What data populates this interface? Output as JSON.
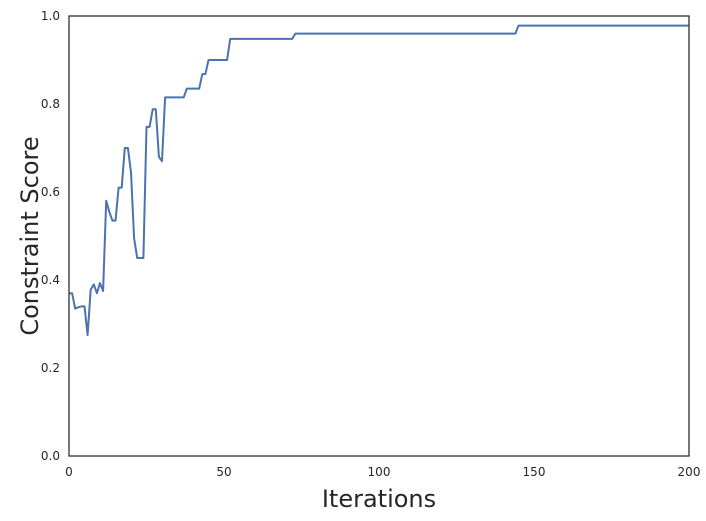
{
  "chart_data": {
    "type": "line",
    "title": "",
    "xlabel": "Iterations",
    "ylabel": "Constraint Score",
    "xlim": [
      0,
      200
    ],
    "ylim": [
      0.0,
      1.0
    ],
    "xticks": [
      0,
      50,
      100,
      150,
      200
    ],
    "yticks": [
      0.0,
      0.2,
      0.4,
      0.6,
      0.8,
      1.0
    ],
    "xtick_labels": [
      "0",
      "50",
      "100",
      "150",
      "200"
    ],
    "ytick_labels": [
      "0.0",
      "0.2",
      "0.4",
      "0.6",
      "0.8",
      "1.0"
    ],
    "grid": false,
    "legend": "none",
    "series": [
      {
        "color": "#4c72b0",
        "x": [
          0,
          1,
          2,
          3,
          4,
          5,
          6,
          7,
          8,
          9,
          10,
          11,
          12,
          13,
          14,
          15,
          16,
          17,
          18,
          19,
          20,
          21,
          22,
          23,
          24,
          25,
          26,
          27,
          28,
          29,
          30,
          31,
          32,
          33,
          34,
          35,
          36,
          37,
          38,
          39,
          40,
          41,
          42,
          43,
          44,
          45,
          46,
          47,
          48,
          49,
          50,
          51,
          52,
          60,
          72,
          73,
          80,
          100,
          120,
          144,
          145,
          160,
          180,
          200
        ],
        "y": [
          0.37,
          0.37,
          0.335,
          0.338,
          0.34,
          0.34,
          0.275,
          0.378,
          0.39,
          0.37,
          0.393,
          0.375,
          0.58,
          0.555,
          0.535,
          0.535,
          0.61,
          0.61,
          0.7,
          0.7,
          0.645,
          0.495,
          0.45,
          0.45,
          0.45,
          0.748,
          0.748,
          0.788,
          0.788,
          0.68,
          0.67,
          0.815,
          0.815,
          0.815,
          0.815,
          0.815,
          0.815,
          0.815,
          0.835,
          0.835,
          0.835,
          0.835,
          0.835,
          0.868,
          0.868,
          0.9,
          0.9,
          0.9,
          0.9,
          0.9,
          0.9,
          0.9,
          0.948,
          0.948,
          0.948,
          0.96,
          0.96,
          0.96,
          0.96,
          0.96,
          0.978,
          0.978,
          0.978,
          0.978
        ]
      }
    ]
  }
}
